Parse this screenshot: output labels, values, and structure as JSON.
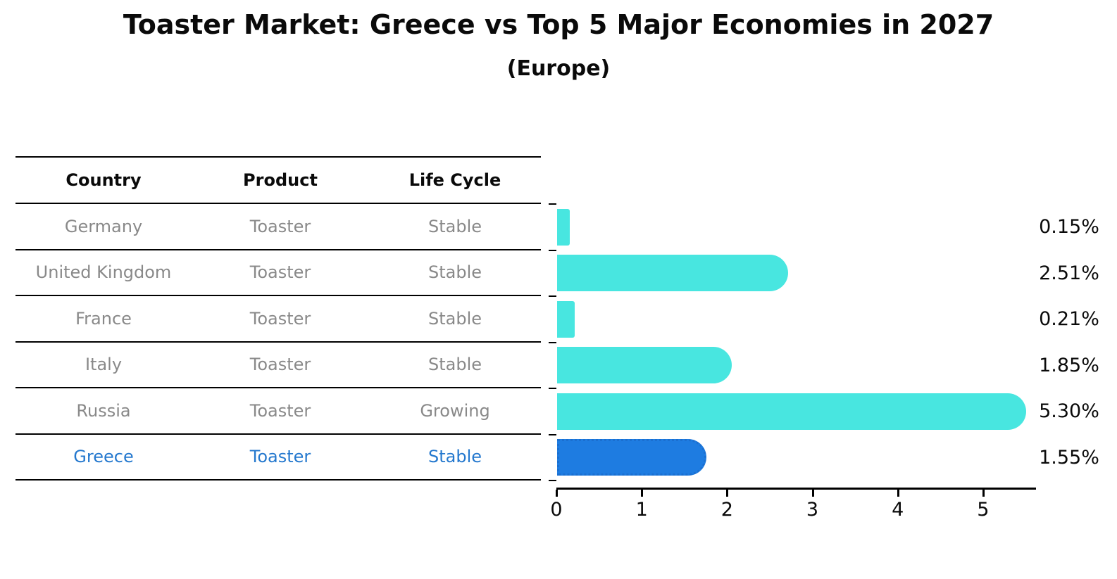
{
  "title": "Toaster Market: Greece vs Top 5 Major Economies in 2027",
  "subtitle": "(Europe)",
  "colors": {
    "bar_cyan": "#48E6E0",
    "bar_highlight_blue": "#1E7CE1",
    "bar_highlight_border": "#1B6FD0",
    "table_text_gray": "#898989",
    "highlight_text_blue": "#2478CE",
    "axis_black": "#000000"
  },
  "table": {
    "headers": [
      "Country",
      "Product",
      "Life Cycle"
    ],
    "rows": [
      {
        "country": "Germany",
        "product": "Toaster",
        "life_cycle": "Stable",
        "highlight": false
      },
      {
        "country": "United Kingdom",
        "product": "Toaster",
        "life_cycle": "Stable",
        "highlight": false
      },
      {
        "country": "France",
        "product": "Toaster",
        "life_cycle": "Stable",
        "highlight": false
      },
      {
        "country": "Italy",
        "product": "Toaster",
        "life_cycle": "Stable",
        "highlight": false
      },
      {
        "country": "Russia",
        "product": "Toaster",
        "life_cycle": "Growing",
        "highlight": false
      },
      {
        "country": "Greece",
        "product": "Toaster",
        "life_cycle": "Stable",
        "highlight": true
      }
    ]
  },
  "chart_data": {
    "type": "bar",
    "orientation": "horizontal",
    "title": "Toaster Market: Greece vs Top 5 Major Economies in 2027",
    "subtitle": "(Europe)",
    "categories": [
      "Germany",
      "United Kingdom",
      "France",
      "Italy",
      "Russia",
      "Greece"
    ],
    "values": [
      0.15,
      2.51,
      0.21,
      1.85,
      5.3,
      1.55
    ],
    "value_labels": [
      "0.15%",
      "2.51%",
      "0.21%",
      "1.85%",
      "5.30%",
      "1.55%"
    ],
    "units": "percent",
    "xlabel": "",
    "ylabel": "",
    "xticks": [
      0,
      1,
      2,
      3,
      4,
      5
    ],
    "xlim": [
      0,
      5.62
    ],
    "grid": false,
    "legend": false,
    "highlight_category": "Greece",
    "highlight_index": 5
  }
}
